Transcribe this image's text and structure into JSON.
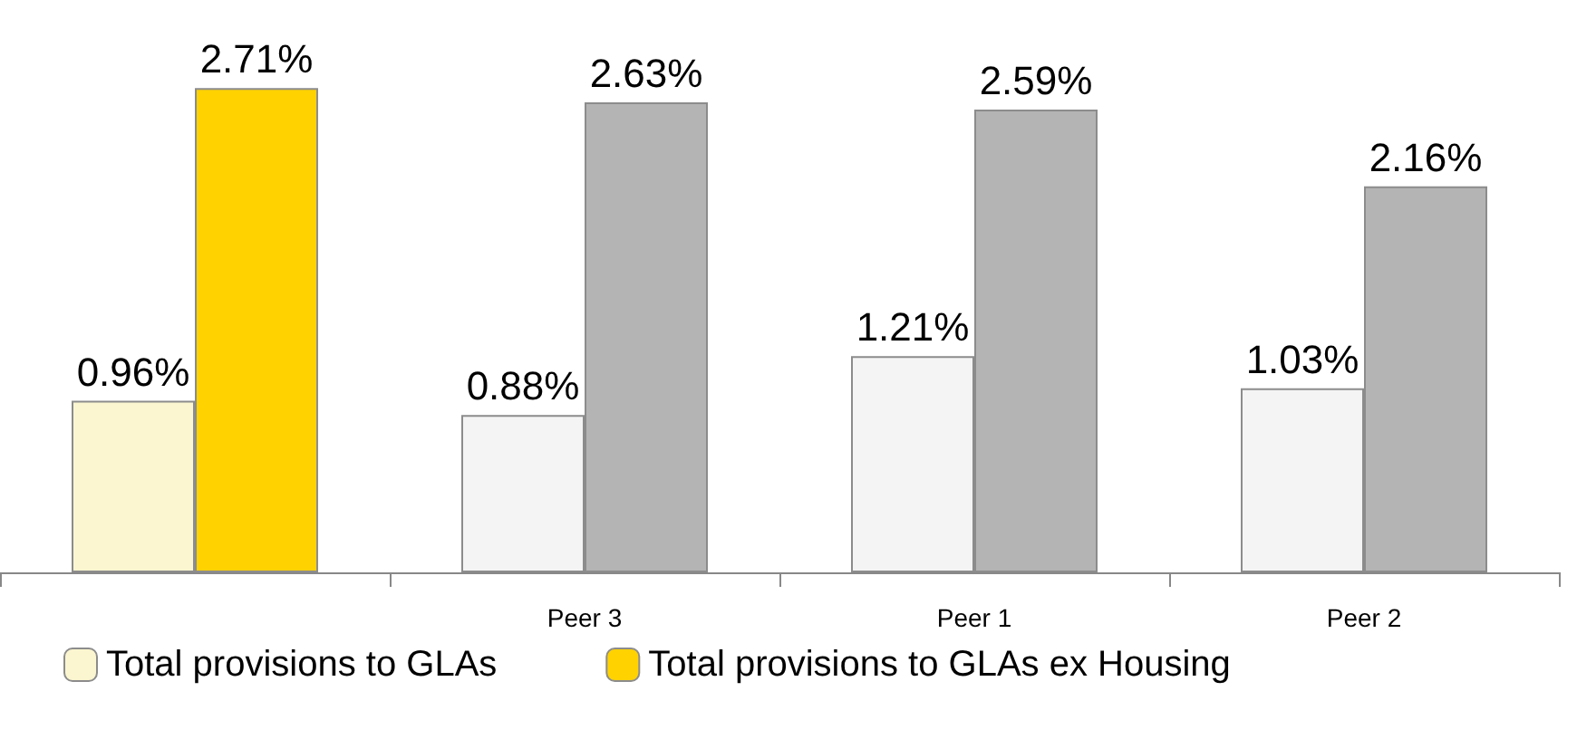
{
  "chart_data": {
    "type": "bar",
    "categories": [
      null,
      "Peer 3",
      "Peer 1",
      "Peer 2"
    ],
    "series": [
      {
        "name": "Total provisions to GLAs",
        "color": "#fbf6cf",
        "colors": [
          "#fbf6cf",
          "#f4f4f4",
          "#f4f4f4",
          "#f4f4f4"
        ],
        "values": [
          0.96,
          0.88,
          1.21,
          1.03
        ],
        "value_labels": [
          "0.96%",
          "0.88%",
          "1.21%",
          "1.03%"
        ]
      },
      {
        "name": "Total provisions to GLAs ex Housing",
        "color": "#ffd200",
        "colors": [
          "#ffd200",
          "#b4b4b4",
          "#b4b4b4",
          "#b4b4b4"
        ],
        "values": [
          2.71,
          2.63,
          2.59,
          2.16
        ],
        "value_labels": [
          "2.71%",
          "2.63%",
          "2.59%",
          "2.16%"
        ]
      }
    ],
    "legend": "bottom"
  }
}
